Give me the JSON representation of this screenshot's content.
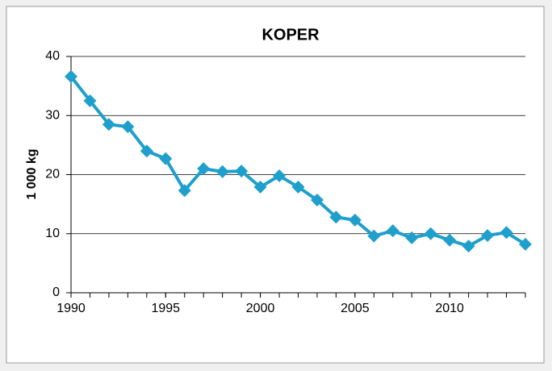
{
  "chart_data": {
    "type": "line",
    "title": "KOPER",
    "ylabel": "1 000 kg",
    "x": [
      1990,
      1991,
      1992,
      1993,
      1994,
      1995,
      1996,
      1997,
      1998,
      1999,
      2000,
      2001,
      2002,
      2003,
      2004,
      2005,
      2006,
      2007,
      2008,
      2009,
      2010,
      2011,
      2012,
      2013,
      2014
    ],
    "series": [
      {
        "name": "KOPER",
        "color": "#1e9fcc",
        "values": [
          36.6,
          32.5,
          28.5,
          28.1,
          24.0,
          22.7,
          17.3,
          21.0,
          20.5,
          20.6,
          17.9,
          19.8,
          17.9,
          15.7,
          12.8,
          12.3,
          9.6,
          10.5,
          9.3,
          10.0,
          8.9,
          7.9,
          9.7,
          10.2,
          8.2
        ]
      }
    ],
    "xlim": [
      1990,
      2014
    ],
    "xticks": [
      1990,
      1995,
      2000,
      2005,
      2010
    ],
    "ylim": [
      0,
      40
    ],
    "yticks": [
      0,
      10,
      20,
      30,
      40
    ],
    "grid": true,
    "legend": false
  }
}
